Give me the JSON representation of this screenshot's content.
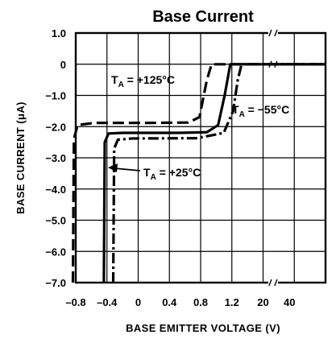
{
  "chart_data": {
    "type": "line",
    "title": "Base Current",
    "xlabel": "BASE EMITTER VOLTAGE (V)",
    "ylabel": "BASE CURRENT (μA)",
    "ylim": [
      -7.0,
      1.0
    ],
    "x_tick_labels": [
      "–0.8",
      "–0.4",
      "0",
      "0.4",
      "0.8",
      "1.2",
      "20",
      "40"
    ],
    "y_tick_labels": [
      "1.0",
      "0",
      "−1.0",
      "−2.0",
      "−3.0",
      "−4.0",
      "−5.0",
      "−6.0",
      "−7.0"
    ],
    "y_ticks": [
      1,
      0,
      -1,
      -2,
      -3,
      -4,
      -5,
      -6,
      -7
    ],
    "axis_break_after_x": 1.2,
    "grid": true,
    "series": [
      {
        "label": "T",
        "label_sub": "A",
        "label_rest": " = +125°C",
        "line_style": "dashed-long",
        "points": [
          [
            -0.83,
            -7.0
          ],
          [
            -0.82,
            -2.4
          ],
          [
            -0.78,
            -1.95
          ],
          [
            -0.6,
            -1.88
          ],
          [
            0.0,
            -1.88
          ],
          [
            0.4,
            -1.87
          ],
          [
            0.52,
            -1.7
          ],
          [
            0.6,
            -0.5
          ],
          [
            0.65,
            0.0
          ],
          [
            1.2,
            0.0
          ],
          [
            20,
            0.0
          ],
          [
            40,
            0.0
          ]
        ]
      },
      {
        "label": "T",
        "label_sub": "A",
        "label_rest": " = +25°C",
        "line_style": "solid",
        "points": [
          [
            -0.5,
            -7.0
          ],
          [
            -0.49,
            -2.5
          ],
          [
            -0.45,
            -2.22
          ],
          [
            -0.3,
            -2.2
          ],
          [
            0.3,
            -2.2
          ],
          [
            0.6,
            -2.18
          ],
          [
            0.72,
            -1.95
          ],
          [
            0.79,
            -1.0
          ],
          [
            0.85,
            0.0
          ],
          [
            1.2,
            0.0
          ],
          [
            20,
            0.0
          ],
          [
            40,
            0.0
          ]
        ]
      },
      {
        "label": "T",
        "label_sub": "A",
        "label_rest": " = −55°C",
        "line_style": "dash-dot",
        "points": [
          [
            -0.4,
            -7.0
          ],
          [
            -0.39,
            -2.7
          ],
          [
            -0.35,
            -2.42
          ],
          [
            -0.2,
            -2.38
          ],
          [
            0.5,
            -2.37
          ],
          [
            0.78,
            -2.2
          ],
          [
            0.88,
            -1.5
          ],
          [
            0.93,
            -0.5
          ],
          [
            0.97,
            0.0
          ],
          [
            1.2,
            0.0
          ],
          [
            20,
            0.0
          ],
          [
            40,
            0.0
          ]
        ]
      }
    ]
  }
}
